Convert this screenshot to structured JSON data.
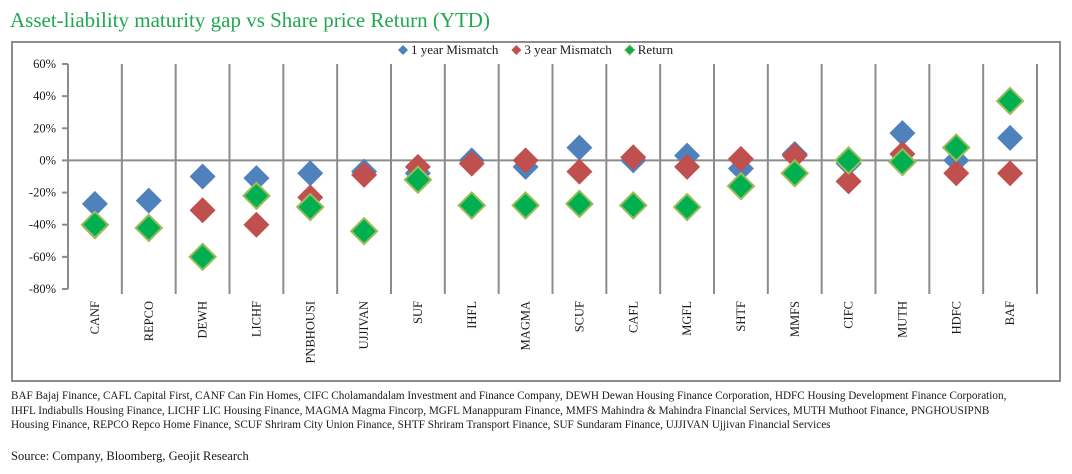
{
  "chart_data": {
    "type": "scatter",
    "title": "Asset-liability maturity gap vs Share price Return (YTD)",
    "xlabel": "",
    "ylabel": "",
    "ylim": [
      -0.8,
      0.6
    ],
    "yticks": [
      0.6,
      0.4,
      0.2,
      0.0,
      -0.2,
      -0.4,
      -0.6,
      -0.8
    ],
    "ytick_labels": [
      "60%",
      "40%",
      "20%",
      "0%",
      "-20%",
      "-40%",
      "-60%",
      "-80%"
    ],
    "grid": "vertical category separators",
    "legend_position": "top-center",
    "categories": [
      "CANF",
      "REPCO",
      "DEWH",
      "LICHF",
      "PNBHOUSI",
      "UJJIVAN",
      "SUF",
      "IHFL",
      "MAGMA",
      "SCUF",
      "CAFL",
      "MGFL",
      "SHTF",
      "MMFS",
      "CIFC",
      "MUTH",
      "HDFC",
      "BAF"
    ],
    "series": [
      {
        "name": "1 year Mismatch",
        "color": "#4f81bd",
        "marker": "diamond",
        "values": [
          -0.27,
          -0.25,
          -0.1,
          -0.11,
          -0.08,
          -0.07,
          -0.08,
          0.0,
          -0.04,
          0.08,
          0.0,
          0.03,
          -0.05,
          0.04,
          -0.02,
          0.17,
          0.0,
          0.14
        ]
      },
      {
        "name": "3 year Mismatch",
        "color": "#c0504d",
        "marker": "diamond",
        "values": [
          -0.41,
          -0.42,
          -0.31,
          -0.4,
          -0.23,
          -0.09,
          -0.04,
          -0.02,
          0.0,
          -0.07,
          0.02,
          -0.04,
          0.01,
          0.03,
          -0.13,
          0.04,
          -0.08,
          -0.08
        ]
      },
      {
        "name": "Return",
        "color": "#00b050",
        "edge_color": "#9bbb59",
        "marker": "diamond",
        "values": [
          -0.4,
          -0.42,
          -0.6,
          -0.22,
          -0.29,
          -0.44,
          -0.12,
          -0.28,
          -0.28,
          -0.27,
          -0.28,
          -0.29,
          -0.16,
          -0.08,
          0.0,
          -0.01,
          0.08,
          0.37
        ]
      }
    ]
  },
  "footnote": "BAF Bajaj Finance, CAFL Capital First, CANF Can Fin Homes, CIFC Cholamandalam Investment and Finance Company, DEWH Dewan Housing Finance Corporation, HDFC Housing Development Finance Corporation, IHFL Indiabulls Housing Finance, LICHF LIC Housing Finance, MAGMA Magma Fincorp, MGFL Manappuram Finance, MMFS Mahindra & Mahindra Financial Services, MUTH Muthoot Finance, PNGHOUSIPNB Housing Finance, REPCO Repco Home Finance, SCUF Shriram City Union Finance, SHTF Shriram Transport Finance, SUF Sundaram Finance, UJJIVAN Ujjivan Financial Services",
  "source": "Source: Company, Bloomberg, Geojit Research",
  "colors": {
    "title": "#1fa84f",
    "axis": "#8c8c8c"
  }
}
